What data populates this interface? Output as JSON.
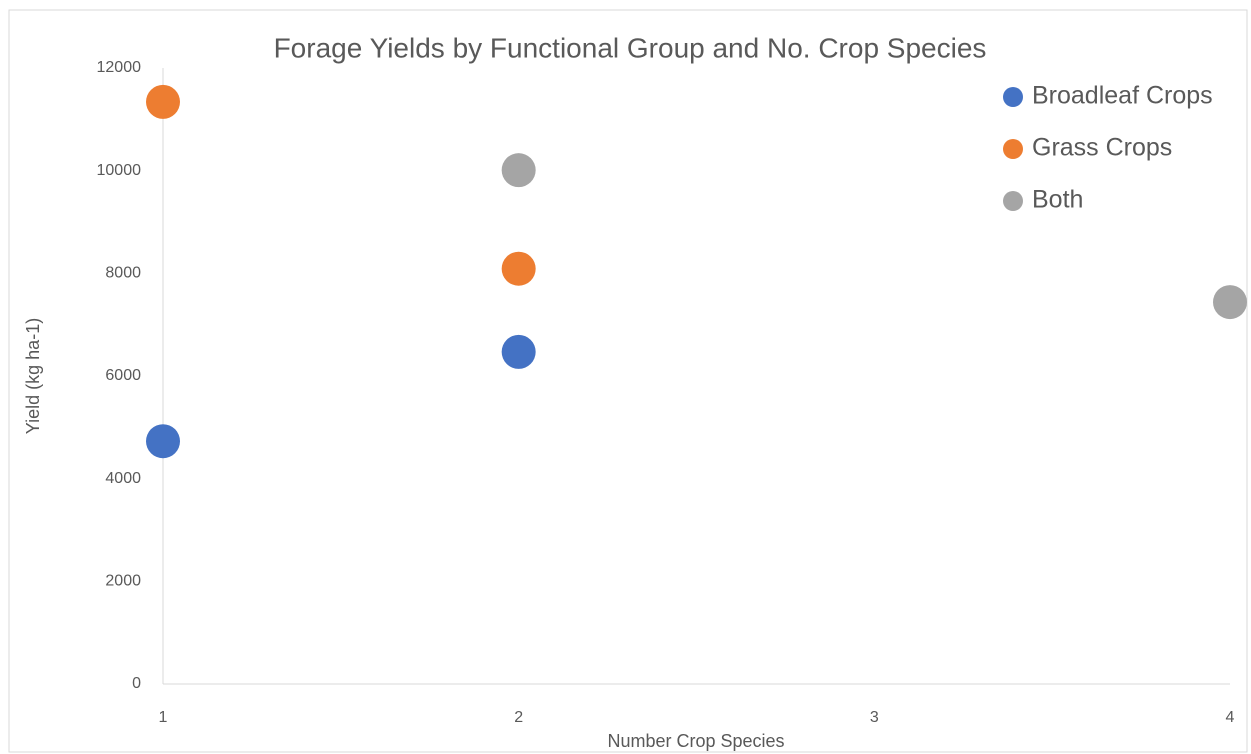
{
  "chart_data": {
    "type": "scatter",
    "title": "Forage Yields by Functional Group and No. Crop Species",
    "xlabel": "Number Crop Species",
    "ylabel": "Yield (kg ha-1)",
    "xlim": [
      1,
      4
    ],
    "xticks": [
      1,
      2,
      3,
      4
    ],
    "ylim": [
      0,
      12000
    ],
    "yticks": [
      0,
      2000,
      4000,
      6000,
      8000,
      10000,
      12000
    ],
    "grid": false,
    "legend": "upper right",
    "series": [
      {
        "name": "Broadleaf Crops",
        "color": "#4472c4",
        "x": [
          1,
          2
        ],
        "values": [
          4730,
          6470
        ]
      },
      {
        "name": "Grass Crops",
        "color": "#ed7d31",
        "x": [
          1,
          2
        ],
        "values": [
          11340,
          8090
        ]
      },
      {
        "name": "Both",
        "color": "#a5a5a5",
        "x": [
          2,
          4
        ],
        "values": [
          10010,
          7440
        ]
      }
    ]
  }
}
